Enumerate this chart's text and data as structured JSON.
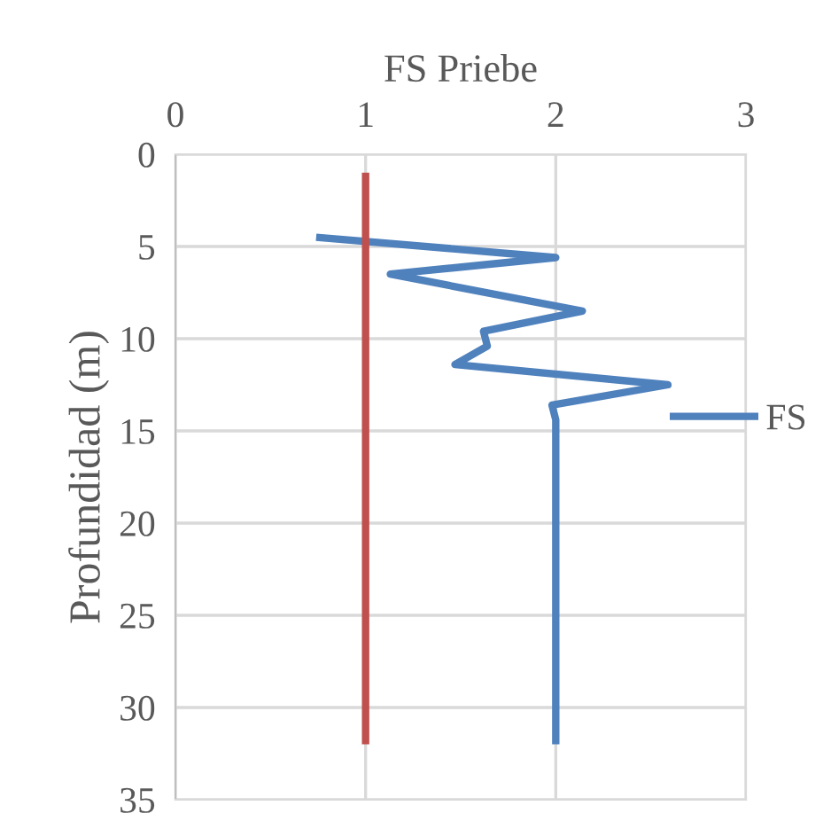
{
  "chart_data": {
    "type": "line",
    "xlabel": "FS Priebe",
    "ylabel": "Profundidad (m)",
    "xlim": [
      0,
      3
    ],
    "xticks": [
      0,
      1,
      2,
      3
    ],
    "ylim": [
      35,
      0
    ],
    "yticks": [
      0,
      5,
      10,
      15,
      20,
      25,
      30,
      35
    ],
    "grid": true,
    "legend": "right",
    "line_style": "solid",
    "marker": "none",
    "series": [
      {
        "name": "FS",
        "color": "#4f81bd",
        "x": [
          0.74,
          2.0,
          1.13,
          2.14,
          1.62,
          1.64,
          1.47,
          2.59,
          1.98,
          2.0,
          2.0
        ],
        "values": [
          4.5,
          5.6,
          6.5,
          8.5,
          9.6,
          10.4,
          11.4,
          12.5,
          13.6,
          14.4,
          32
        ]
      },
      {
        "color": "#c0504d",
        "x": [
          1,
          1
        ],
        "values": [
          1,
          32
        ]
      }
    ]
  }
}
